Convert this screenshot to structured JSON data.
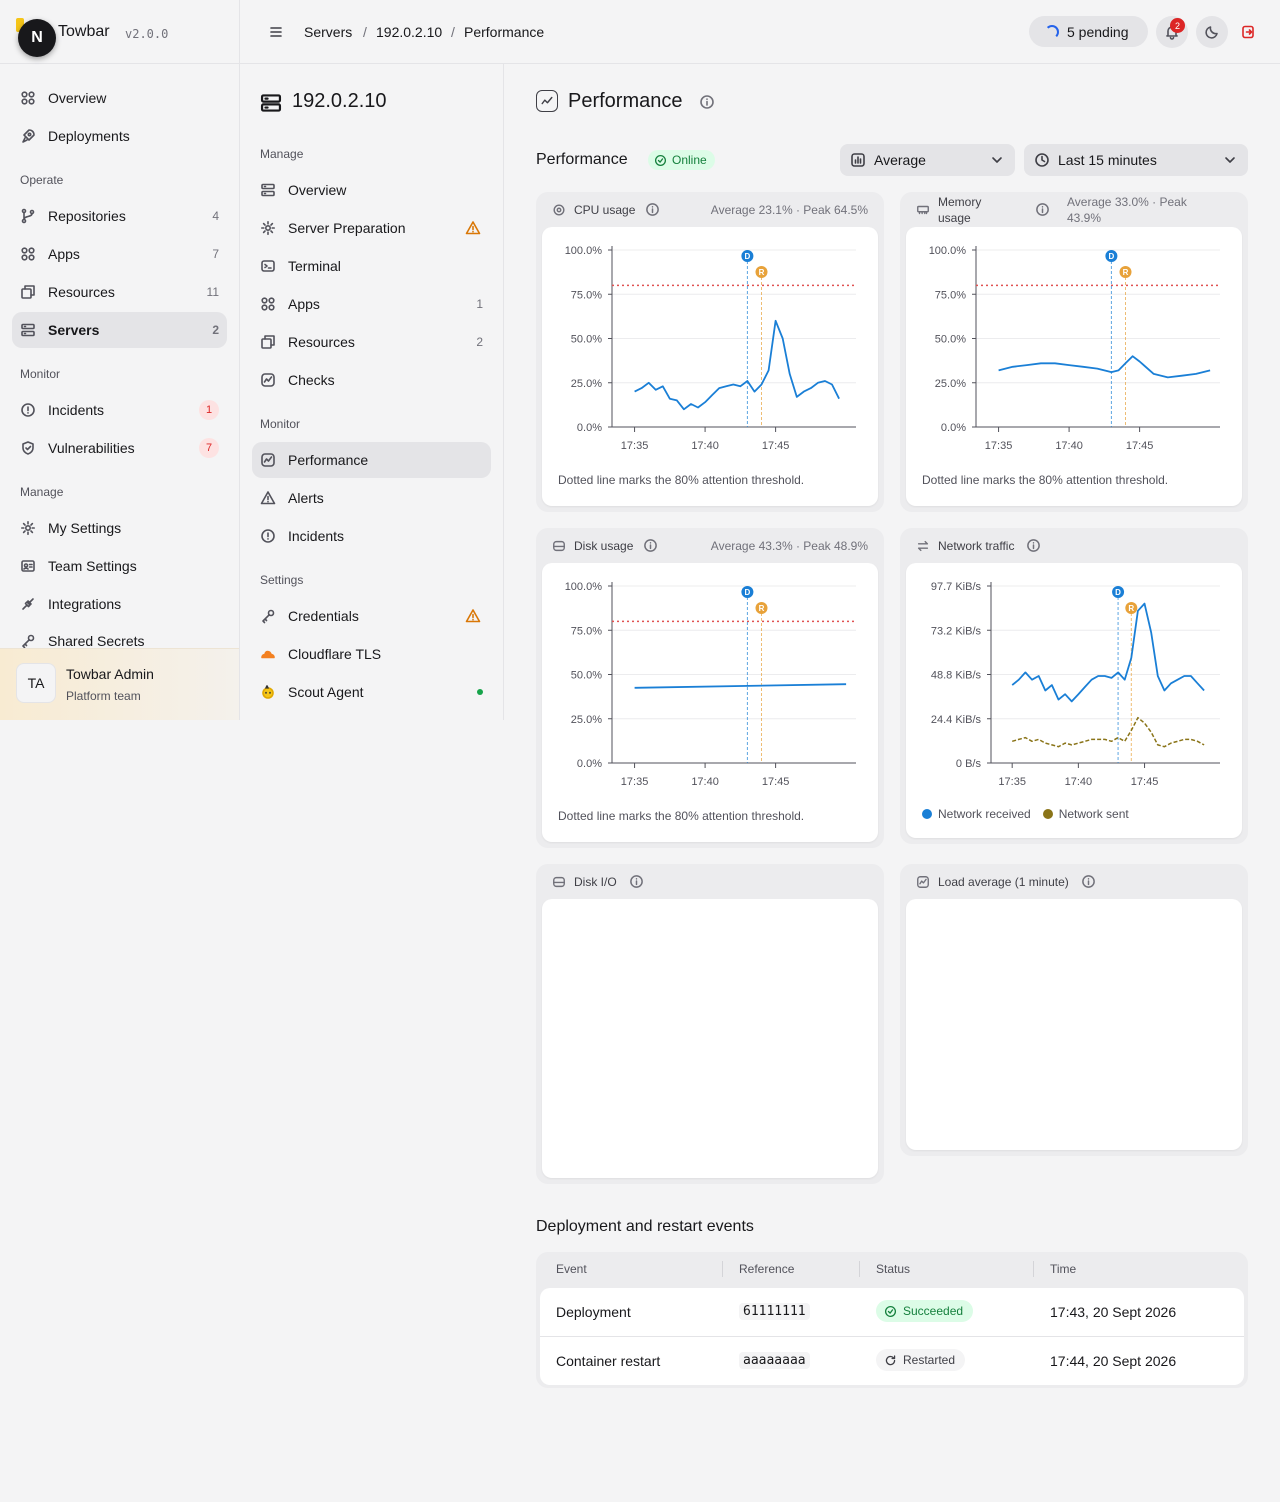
{
  "app": {
    "name": "Towbar",
    "version": "v2.0.0",
    "logo_letter": "N"
  },
  "sidebar": {
    "items_top": [
      {
        "label": "Overview",
        "icon": "grid-icon"
      },
      {
        "label": "Deployments",
        "icon": "rocket-icon"
      }
    ],
    "operate_label": "Operate",
    "operate": [
      {
        "label": "Repositories",
        "count": "4",
        "icon": "git-branch-icon"
      },
      {
        "label": "Apps",
        "count": "7",
        "icon": "grid-icon"
      },
      {
        "label": "Resources",
        "count": "11",
        "icon": "boxes-icon"
      },
      {
        "label": "Servers",
        "count": "2",
        "icon": "server-icon",
        "active": true
      }
    ],
    "monitor_label": "Monitor",
    "monitor": [
      {
        "label": "Incidents",
        "count": "1",
        "icon": "alert-circle-icon"
      },
      {
        "label": "Vulnerabilities",
        "count": "7",
        "icon": "shield-icon"
      }
    ],
    "manage_label": "Manage",
    "manage": [
      {
        "label": "My Settings",
        "icon": "gear-icon"
      },
      {
        "label": "Team Settings",
        "icon": "id-card-icon"
      },
      {
        "label": "Integrations",
        "icon": "plug-icon"
      },
      {
        "label": "Shared Secrets",
        "icon": "key-icon"
      }
    ],
    "user": {
      "initials": "TA",
      "name": "Towbar Admin",
      "team": "Platform team"
    }
  },
  "header": {
    "breadcrumbs": [
      "Servers",
      "192.0.2.10",
      "Performance"
    ],
    "separator": "/",
    "pending_label": "5 pending",
    "notification_count": "2"
  },
  "subnav": {
    "server_name": "192.0.2.10",
    "manage_label": "Manage",
    "manage": [
      {
        "label": "Overview",
        "icon": "server-icon"
      },
      {
        "label": "Server Preparation",
        "icon": "gear-icon",
        "warning": true
      },
      {
        "label": "Terminal",
        "icon": "terminal-icon"
      },
      {
        "label": "Apps",
        "count": "1",
        "icon": "grid-icon"
      },
      {
        "label": "Resources",
        "count": "2",
        "icon": "boxes-icon"
      },
      {
        "label": "Checks",
        "icon": "activity-icon"
      }
    ],
    "monitor_label": "Monitor",
    "monitor": [
      {
        "label": "Performance",
        "icon": "activity-icon",
        "active": true
      },
      {
        "label": "Alerts",
        "icon": "warning-icon"
      },
      {
        "label": "Incidents",
        "icon": "alert-circle-icon"
      }
    ],
    "settings_label": "Settings",
    "settings": [
      {
        "label": "Credentials",
        "icon": "key-icon",
        "warning": true
      },
      {
        "label": "Cloudflare TLS",
        "icon": "cloud-icon"
      },
      {
        "label": "Scout Agent",
        "icon": "agent-icon",
        "status_dot": true
      }
    ]
  },
  "main": {
    "title": "Performance",
    "section_title": "Performance",
    "status": "Online",
    "aggregate_select": "Average",
    "range_select": "Last 15 minutes",
    "cards": {
      "cpu": {
        "title": "CPU usage",
        "stats": "Average 23.1% · Peak 64.5%",
        "caption": "Dotted line marks the 80% attention threshold."
      },
      "memory": {
        "title": "Memory usage",
        "stats": "Average 33.0% · Peak 43.9%",
        "caption": "Dotted line marks the 80% attention threshold."
      },
      "disk": {
        "title": "Disk usage",
        "stats": "Average 43.3% · Peak 48.9%",
        "caption": "Dotted line marks the 80% attention threshold."
      },
      "network": {
        "title": "Network traffic"
      },
      "diskio": {
        "title": "Disk I/O"
      },
      "load": {
        "title": "Load average (1 minute)"
      }
    },
    "events": {
      "title": "Deployment and restart events",
      "columns": [
        "Event",
        "Reference",
        "Status",
        "Time"
      ],
      "rows": [
        {
          "event": "Deployment",
          "reference": "61111111",
          "status": "Succeeded",
          "time": "17:43, 20 Sept 2026"
        },
        {
          "event": "Container restart",
          "reference": "aaaaaaaa",
          "status": "Restarted",
          "time": "17:44, 20 Sept 2026"
        }
      ]
    }
  },
  "colors": {
    "line": "#1a7fd6",
    "threshold": "#e05252",
    "deploy_marker": "#1a7fd6",
    "restart_marker": "#e8a23a",
    "network_sent": "#8a7418"
  },
  "chart_data": [
    {
      "type": "line",
      "title": "CPU usage",
      "x_ticks": [
        "17:35",
        "17:40",
        "17:45"
      ],
      "y_ticks": [
        "0.0%",
        "25.0%",
        "50.0%",
        "75.0%",
        "100.0%"
      ],
      "ylim": [
        0,
        100
      ],
      "threshold": 80,
      "markers": [
        {
          "label": "D",
          "time": "17:43"
        },
        {
          "label": "R",
          "time": "17:44"
        }
      ],
      "x": [
        "17:35",
        "17:35.5",
        "17:36",
        "17:36.5",
        "17:37",
        "17:37.5",
        "17:38",
        "17:38.5",
        "17:39",
        "17:39.5",
        "17:40",
        "17:40.5",
        "17:41",
        "17:41.5",
        "17:42",
        "17:42.5",
        "17:43",
        "17:43.5",
        "17:44",
        "17:44.5",
        "17:45",
        "17:45.5",
        "17:46",
        "17:46.5",
        "17:47",
        "17:47.5",
        "17:48",
        "17:48.5",
        "17:49",
        "17:49.5"
      ],
      "series": [
        {
          "values": [
            20,
            22,
            25,
            21,
            23,
            16,
            15,
            10,
            13,
            11,
            14,
            18,
            22,
            23,
            24,
            23,
            26,
            20,
            24,
            32,
            60,
            50,
            30,
            17,
            20,
            22,
            25,
            26,
            24,
            16
          ]
        }
      ]
    },
    {
      "type": "line",
      "title": "Memory usage",
      "x_ticks": [
        "17:35",
        "17:40",
        "17:45"
      ],
      "y_ticks": [
        "0.0%",
        "25.0%",
        "50.0%",
        "75.0%",
        "100.0%"
      ],
      "ylim": [
        0,
        100
      ],
      "threshold": 80,
      "markers": [
        {
          "label": "D",
          "time": "17:43"
        },
        {
          "label": "R",
          "time": "17:44"
        }
      ],
      "x": [
        "17:35",
        "17:36",
        "17:37",
        "17:38",
        "17:39",
        "17:40",
        "17:41",
        "17:42",
        "17:43",
        "17:43.5",
        "17:44",
        "17:44.5",
        "17:45",
        "17:46",
        "17:47",
        "17:48",
        "17:49",
        "17:50"
      ],
      "series": [
        {
          "values": [
            32,
            34,
            35,
            36,
            36,
            35,
            34,
            33,
            31,
            32,
            36,
            40,
            37,
            30,
            28,
            29,
            30,
            32
          ]
        }
      ]
    },
    {
      "type": "line",
      "title": "Disk usage",
      "x_ticks": [
        "17:35",
        "17:40",
        "17:45"
      ],
      "y_ticks": [
        "0.0%",
        "25.0%",
        "50.0%",
        "75.0%",
        "100.0%"
      ],
      "ylim": [
        0,
        100
      ],
      "threshold": 80,
      "markers": [
        {
          "label": "D",
          "time": "17:43"
        },
        {
          "label": "R",
          "time": "17:44"
        }
      ],
      "x": [
        "17:35",
        "17:50"
      ],
      "series": [
        {
          "values": [
            42.5,
            44.5
          ]
        }
      ]
    },
    {
      "type": "line",
      "title": "Network traffic",
      "x_ticks": [
        "17:35",
        "17:40",
        "17:45"
      ],
      "y_ticks": [
        "0 B/s",
        "24.4 KiB/s",
        "48.8 KiB/s",
        "73.2 KiB/s",
        "97.7 KiB/s"
      ],
      "ylim": [
        0,
        97.7
      ],
      "markers": [
        {
          "label": "D",
          "time": "17:43"
        },
        {
          "label": "R",
          "time": "17:44"
        }
      ],
      "x": [
        "17:35",
        "17:35.5",
        "17:36",
        "17:36.5",
        "17:37",
        "17:37.5",
        "17:38",
        "17:38.5",
        "17:39",
        "17:39.5",
        "17:40",
        "17:40.5",
        "17:41",
        "17:41.5",
        "17:42",
        "17:42.5",
        "17:43",
        "17:43.5",
        "17:44",
        "17:44.5",
        "17:45",
        "17:45.5",
        "17:46",
        "17:46.5",
        "17:47",
        "17:47.5",
        "17:48",
        "17:48.5",
        "17:49",
        "17:49.5"
      ],
      "series": [
        {
          "name": "Network received",
          "values": [
            43,
            46,
            50,
            46,
            48,
            40,
            43,
            35,
            38,
            34,
            38,
            42,
            46,
            48,
            48,
            47,
            50,
            46,
            58,
            84,
            88,
            72,
            48,
            40,
            44,
            46,
            48,
            48,
            44,
            40
          ]
        },
        {
          "name": "Network sent",
          "values": [
            12,
            13,
            14,
            12,
            13,
            11,
            10,
            9,
            11,
            10,
            11,
            12,
            13,
            13,
            13,
            12,
            14,
            12,
            18,
            25,
            22,
            17,
            10,
            9,
            11,
            12,
            13,
            13,
            12,
            10
          ]
        }
      ]
    },
    {
      "type": "line",
      "title": "Disk I/O",
      "series": []
    },
    {
      "type": "line",
      "title": "Load average (1 minute)",
      "series": []
    }
  ]
}
